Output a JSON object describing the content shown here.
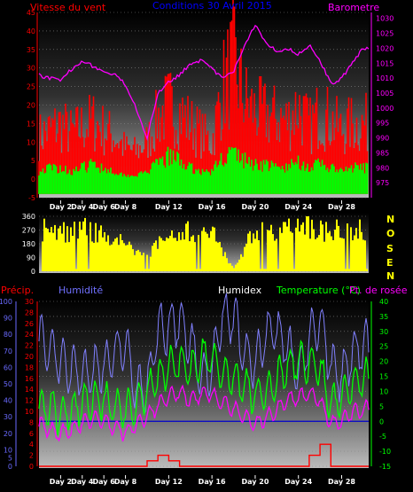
{
  "labels": {
    "wind_title": "Vitesse du vent",
    "period": "Conditions 30 Avril 2015",
    "baro_title": "Barometre",
    "precip": "Précip.",
    "humidity": "Humidité",
    "humidex": "Humidex",
    "temperature": "Temperature (°C)",
    "dewpoint": "Pt. de rosée",
    "compass": [
      "N",
      "O",
      "S",
      "E",
      "N"
    ]
  },
  "colors": {
    "wind": "#ff0000",
    "gust": "#00ff00",
    "baro": "#ff00ff",
    "winddir": "#ffff00",
    "humidity": "#8080ff",
    "temperature": "#00ff00",
    "dewpoint": "#ff00ff",
    "precip": "#ff0000",
    "axis_left": "#ff0000",
    "axis_right": "#ff00ff",
    "humidity_axis": "#6a6aff",
    "temp_axis": "#00ff00",
    "day_label": "#ffffff",
    "baseline": "#0000cc"
  },
  "chart_data": [
    {
      "type": "area",
      "x_labels": [
        "Day 2",
        "Day 4",
        "Day 6",
        "Day 8",
        "Day 12",
        "Day 16",
        "Day 20",
        "Day 24",
        "Day 28"
      ],
      "x_days": [
        2,
        4,
        6,
        8,
        12,
        16,
        20,
        24,
        28
      ],
      "xlim": [
        0,
        30.5
      ],
      "ylabel_left": "Vitesse du vent",
      "ylim_left": [
        -5,
        45
      ],
      "yticks_left": [
        -5,
        0,
        5,
        10,
        15,
        20,
        25,
        30,
        35,
        40,
        45
      ],
      "ylabel_right": "Barometre",
      "ylim_right": [
        970,
        1032
      ],
      "yticks_right": [
        975,
        980,
        985,
        990,
        995,
        1000,
        1005,
        1010,
        1015,
        1020,
        1025,
        1030
      ],
      "series": [
        {
          "name": "Vitesse du vent",
          "axis": "left",
          "x": [
            0,
            1,
            2,
            3,
            4,
            5,
            6,
            7,
            8,
            9,
            10,
            11,
            12,
            13,
            14,
            15,
            16,
            17,
            18,
            19,
            20,
            21,
            22,
            23,
            24,
            25,
            26,
            27,
            28,
            29,
            30
          ],
          "values": [
            14,
            16,
            18,
            15,
            17,
            19,
            16,
            14,
            10,
            9,
            12,
            20,
            24,
            22,
            18,
            15,
            12,
            30,
            38,
            26,
            22,
            21,
            20,
            19,
            24,
            17,
            22,
            19,
            16,
            18,
            18
          ]
        },
        {
          "name": "Rafales",
          "axis": "left",
          "x": [
            0,
            1,
            2,
            3,
            4,
            5,
            6,
            7,
            8,
            9,
            10,
            11,
            12,
            13,
            14,
            15,
            16,
            17,
            18,
            19,
            20,
            21,
            22,
            23,
            24,
            25,
            26,
            27,
            28,
            29,
            30
          ],
          "values": [
            2,
            3,
            3,
            2,
            3,
            4,
            3,
            2,
            1,
            1,
            2,
            4,
            6,
            5,
            3,
            2,
            2,
            6,
            7,
            5,
            4,
            4,
            3,
            3,
            5,
            3,
            4,
            3,
            2,
            3,
            3
          ]
        },
        {
          "name": "Barometre",
          "axis": "right",
          "x": [
            0,
            1,
            2,
            3,
            4,
            5,
            6,
            7,
            8,
            9,
            10,
            11,
            12,
            13,
            14,
            15,
            16,
            17,
            18,
            19,
            20,
            21,
            22,
            23,
            24,
            25,
            26,
            27,
            28,
            29,
            30
          ],
          "values": [
            1011,
            1010,
            1009,
            1013,
            1016,
            1014,
            1012,
            1011,
            1008,
            1000,
            990,
            1005,
            1009,
            1011,
            1015,
            1016,
            1013,
            1010,
            1012,
            1021,
            1028,
            1022,
            1019,
            1020,
            1018,
            1021,
            1016,
            1008,
            1010,
            1015,
            1020
          ]
        }
      ]
    },
    {
      "type": "bar",
      "ylabel_right": "",
      "ylim": [
        0,
        360
      ],
      "yticks": [
        0,
        90,
        180,
        270,
        360
      ],
      "series": [
        {
          "name": "Direction du vent",
          "x": [
            0,
            2,
            4,
            6,
            8,
            10,
            12,
            14,
            16,
            18,
            20,
            22,
            24,
            26,
            28,
            30
          ],
          "values": [
            330,
            300,
            320,
            300,
            200,
            120,
            280,
            310,
            300,
            20,
            330,
            300,
            340,
            320,
            310,
            330
          ]
        }
      ]
    },
    {
      "type": "line",
      "ylim_precip": [
        0,
        30
      ],
      "yticks_precip": [
        0,
        2,
        4,
        6,
        8,
        10,
        12,
        14,
        16,
        18,
        20,
        22,
        24,
        26,
        28,
        30
      ],
      "ylim_humidity": [
        0,
        100
      ],
      "yticks_humidity": [
        0,
        5,
        10,
        20,
        30,
        40,
        50,
        60,
        70,
        80,
        90,
        100
      ],
      "ylim_temp": [
        -15,
        40
      ],
      "yticks_temp": [
        -15,
        -10,
        -5,
        0,
        5,
        10,
        15,
        20,
        25,
        30,
        35,
        40
      ],
      "series": [
        {
          "name": "Humidité",
          "x": [
            0,
            1,
            2,
            3,
            4,
            5,
            6,
            7,
            8,
            9,
            10,
            11,
            12,
            13,
            14,
            15,
            16,
            17,
            18,
            19,
            20,
            21,
            22,
            23,
            24,
            25,
            26,
            27,
            28,
            29,
            30
          ],
          "values": [
            80,
            70,
            65,
            60,
            55,
            58,
            62,
            70,
            75,
            45,
            48,
            82,
            85,
            88,
            75,
            55,
            60,
            92,
            90,
            70,
            60,
            80,
            82,
            72,
            55,
            78,
            90,
            60,
            55,
            68,
            72
          ]
        },
        {
          "name": "Temperature (°C)",
          "x": [
            0,
            1,
            2,
            3,
            4,
            5,
            6,
            7,
            8,
            9,
            10,
            11,
            12,
            13,
            14,
            15,
            16,
            17,
            18,
            19,
            20,
            21,
            22,
            23,
            24,
            25,
            26,
            27,
            28,
            29,
            30
          ],
          "values": [
            6,
            4,
            2,
            4,
            6,
            8,
            7,
            5,
            3,
            5,
            10,
            14,
            18,
            20,
            17,
            22,
            21,
            16,
            14,
            12,
            8,
            10,
            14,
            18,
            20,
            20,
            17,
            6,
            8,
            12,
            14
          ]
        },
        {
          "name": "Pt. de rosée",
          "x": [
            0,
            1,
            2,
            3,
            4,
            5,
            6,
            7,
            8,
            9,
            10,
            11,
            12,
            13,
            14,
            15,
            16,
            17,
            18,
            19,
            20,
            21,
            22,
            23,
            24,
            25,
            26,
            27,
            28,
            29,
            30
          ],
          "values": [
            -1,
            -3,
            -4,
            -3,
            -1,
            1,
            0,
            -2,
            -4,
            -1,
            2,
            5,
            8,
            10,
            7,
            9,
            9,
            6,
            4,
            2,
            -1,
            1,
            4,
            7,
            8,
            9,
            7,
            -1,
            0,
            3,
            4
          ]
        },
        {
          "name": "Précip.",
          "x": [
            0,
            1,
            2,
            3,
            4,
            5,
            6,
            7,
            8,
            9,
            10,
            11,
            12,
            13,
            14,
            15,
            16,
            17,
            18,
            19,
            20,
            21,
            22,
            23,
            24,
            25,
            26,
            27,
            28,
            29,
            30
          ],
          "values": [
            0,
            0,
            0,
            0,
            0,
            0,
            0,
            0,
            0,
            0,
            1,
            2,
            1,
            0,
            0,
            0,
            0,
            0,
            0,
            0,
            0,
            0,
            0,
            0,
            0,
            2,
            4,
            0,
            0,
            0,
            0
          ]
        }
      ]
    }
  ]
}
